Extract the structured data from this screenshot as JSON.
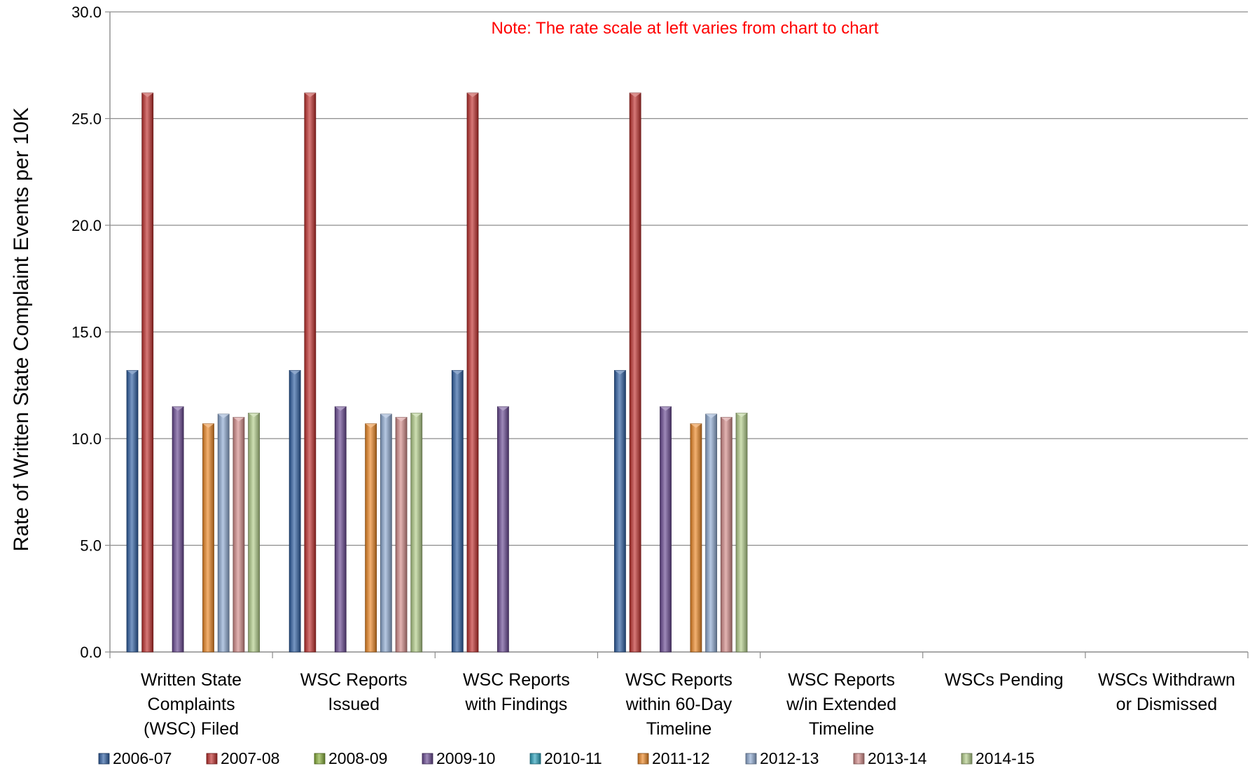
{
  "chart_data": {
    "type": "bar",
    "ylabel": "Rate of Written State Complaint Events per 10K",
    "xlabel": "",
    "ylim": [
      0,
      30
    ],
    "ytick_labels": [
      "0.0",
      "5.0",
      "10.0",
      "15.0",
      "20.0",
      "25.0",
      "30.0"
    ],
    "ytick_values": [
      0,
      5,
      10,
      15,
      20,
      25,
      30
    ],
    "grid": true,
    "legend_position": "bottom",
    "annotation": "Note:  The rate scale at left varies from chart to chart",
    "annotation_color": "#FF0000",
    "categories": [
      [
        "Written State",
        "Complaints",
        "(WSC) Filed"
      ],
      [
        "WSC Reports",
        "Issued"
      ],
      [
        "WSC Reports",
        "with Findings"
      ],
      [
        "WSC Reports",
        "within 60-Day",
        "Timeline"
      ],
      [
        "WSC Reports",
        "w/in Extended",
        "Timeline"
      ],
      [
        "WSCs Pending"
      ],
      [
        "WSCs Withdrawn",
        "or Dismissed"
      ]
    ],
    "series": [
      {
        "name": "2006-07",
        "color": "#2E5FA3",
        "values": [
          13.2,
          13.2,
          13.2,
          13.2,
          null,
          null,
          null
        ]
      },
      {
        "name": "2007-08",
        "color": "#C0302D",
        "values": [
          26.2,
          26.2,
          26.2,
          26.2,
          null,
          null,
          null
        ]
      },
      {
        "name": "2008-09",
        "color": "#88B03A",
        "values": [
          null,
          null,
          null,
          null,
          null,
          null,
          null
        ]
      },
      {
        "name": "2009-10",
        "color": "#6A4A94",
        "values": [
          11.5,
          11.5,
          11.5,
          11.5,
          null,
          null,
          null
        ]
      },
      {
        "name": "2010-11",
        "color": "#2BA3BD",
        "values": [
          null,
          null,
          null,
          null,
          null,
          null,
          null
        ]
      },
      {
        "name": "2011-12",
        "color": "#EC8724",
        "values": [
          10.7,
          10.7,
          null,
          10.7,
          null,
          null,
          null
        ]
      },
      {
        "name": "2012-13",
        "color": "#8FAAD3",
        "values": [
          11.15,
          11.15,
          null,
          11.15,
          null,
          null,
          null
        ]
      },
      {
        "name": "2013-14",
        "color": "#D48C8A",
        "values": [
          11.0,
          11.0,
          null,
          11.0,
          null,
          null,
          null
        ]
      },
      {
        "name": "2014-15",
        "color": "#B3CE8A",
        "values": [
          11.2,
          11.2,
          null,
          11.2,
          null,
          null,
          null
        ]
      }
    ]
  }
}
